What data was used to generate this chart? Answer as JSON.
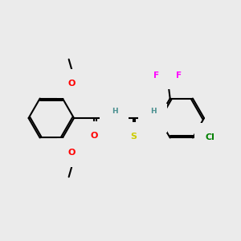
{
  "background_color": "#ebebeb",
  "bond_color": "#000000",
  "atom_colors": {
    "O": "#ff0000",
    "N": "#0000cd",
    "S": "#cccc00",
    "F": "#ff00ff",
    "Cl": "#008000",
    "C": "#000000",
    "H": "#4a9090"
  },
  "figsize": [
    3.0,
    3.0
  ],
  "dpi": 100
}
